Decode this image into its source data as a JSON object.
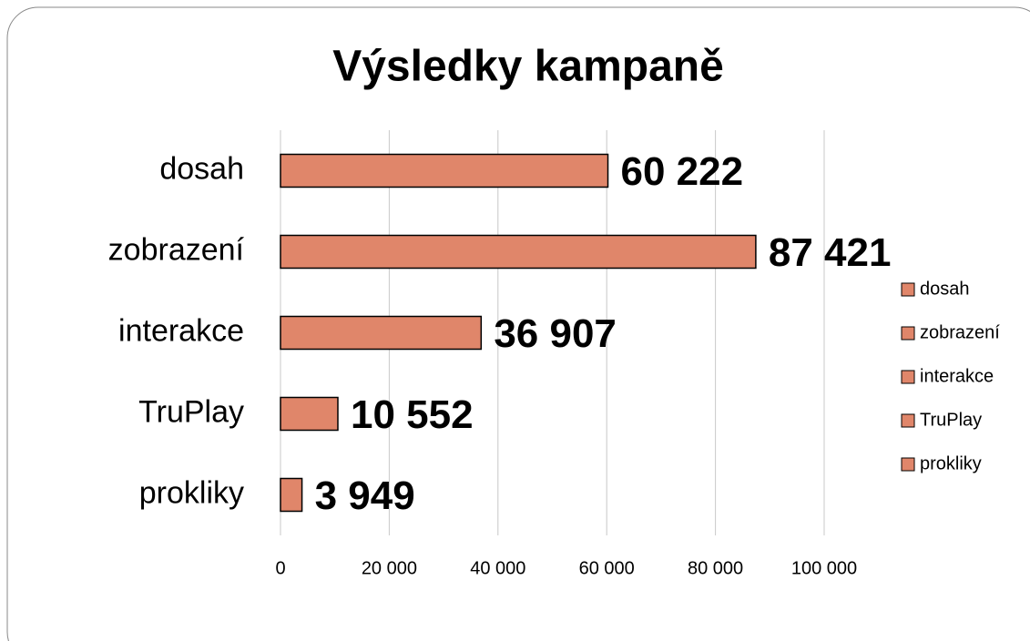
{
  "chart_data": {
    "type": "bar",
    "orientation": "horizontal",
    "title": "Výsledky kampaně",
    "categories": [
      "dosah",
      "zobrazení",
      "interakce",
      "TruPlay",
      "prokliky"
    ],
    "values": [
      60222,
      87421,
      36907,
      10552,
      3949
    ],
    "value_labels": [
      "60 222",
      "87 421",
      "36 907",
      "10 552",
      "3 949"
    ],
    "color": "#e0866a",
    "xlim": [
      0,
      100000
    ],
    "xticks": [
      0,
      {
        "value": 20000,
        "label": "20 000"
      },
      {
        "value": 40000,
        "label": "40 000"
      },
      {
        "value": 60000,
        "label": "60 000"
      },
      {
        "value": 80000,
        "label": "80 000"
      },
      {
        "value": 100000,
        "label": "100 000"
      }
    ],
    "grid": true,
    "legend": "right"
  }
}
